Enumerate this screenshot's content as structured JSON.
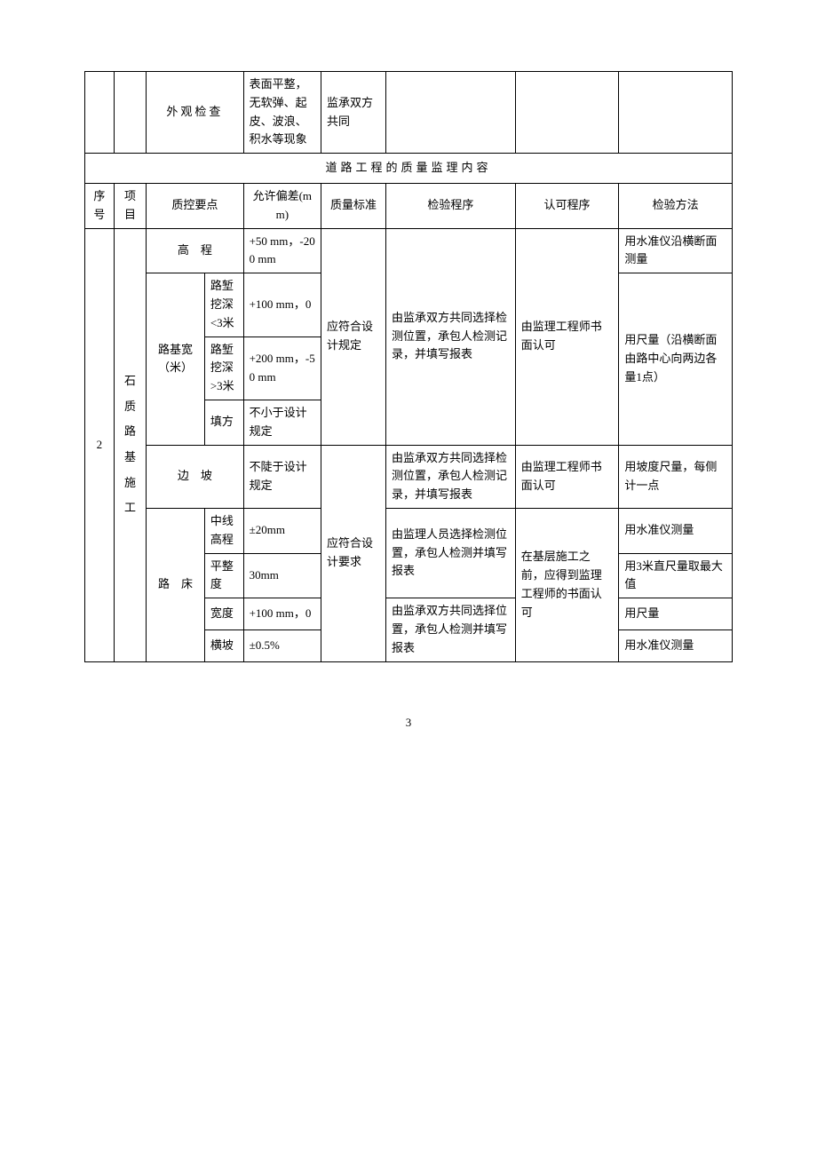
{
  "top_row": {
    "quality_point": "外观检查",
    "tolerance": "表面平整，无软弹、起皮、波浪、积水等现象",
    "standard": "监承双方共同"
  },
  "section_title": "道路工程的质量监理内容",
  "headers": {
    "seq": "序号",
    "item": "项目",
    "quality_point": "质控要点",
    "tolerance": "允许偏差(mm)",
    "standard": "质量标准",
    "inspection": "检验程序",
    "approval": "认可程序",
    "method": "检验方法"
  },
  "body": {
    "seq": "2",
    "item": "石质路基施工",
    "rows": {
      "elevation": {
        "label": "高　程",
        "tolerance": "+50 mm，-200 mm",
        "method": "用水准仪沿横断面测量"
      },
      "width_group": {
        "label": "路基宽（米）",
        "sub": {
          "cut_lt3": {
            "label": "路堑挖深<3米",
            "tolerance": "+100 mm，0"
          },
          "cut_gt3": {
            "label": "路堑挖深>3米",
            "tolerance": "+200 mm，-50 mm"
          },
          "fill": {
            "label": "填方",
            "tolerance": "不小于设计规定"
          }
        },
        "method": "用尺量（沿横断面由路中心向两边各量1点）"
      },
      "std_design": "应符合设计规定",
      "inspection_both_record": "由监承双方共同选择检测位置，承包人检测记录，并填写报表",
      "approval_engineer": "由监理工程师书面认可",
      "slope": {
        "label": "边　坡",
        "tolerance": "不陡于设计规定",
        "method": "用坡度尺量，每侧计一点"
      },
      "roadbed": {
        "label": "路　床",
        "sub": {
          "centerline": {
            "label": "中线高程",
            "tolerance": "±20mm",
            "method": "用水准仪测量"
          },
          "flatness": {
            "label": "平整度",
            "tolerance": "30mm",
            "method": "用3米直尺量取最大值"
          },
          "width": {
            "label": "宽度",
            "tolerance": "+100 mm，0",
            "method": "用尺量"
          },
          "cross": {
            "label": "横坡",
            "tolerance": "±0.5%",
            "method": "用水准仪测量"
          }
        },
        "std": "应符合设计要求",
        "inspection_supervisor": "由监理人员选择检测位置，承包人检测并填写报表",
        "inspection_both_fill": "由监承双方共同选择位置，承包人检测并填写报表",
        "approval_base": "在基层施工之前，应得到监理工程师的书面认可"
      }
    }
  },
  "page_number": "3"
}
